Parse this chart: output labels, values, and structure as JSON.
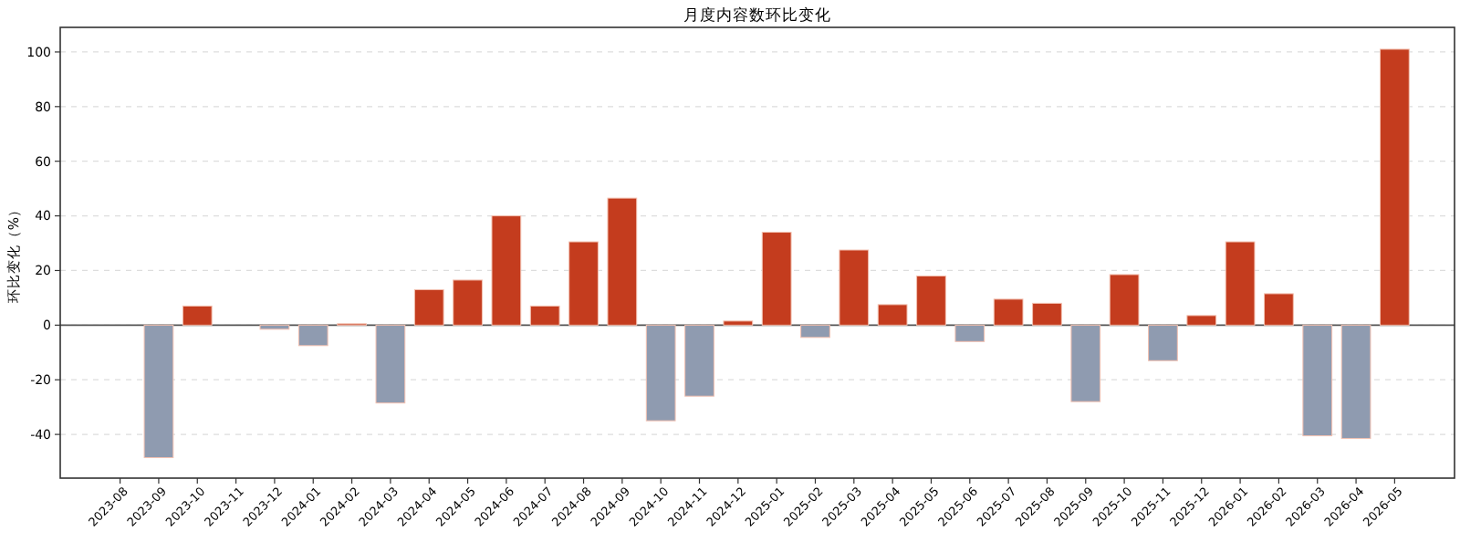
{
  "chart_data": {
    "type": "bar",
    "title": "月度内容数环比变化",
    "ylabel": "环比变化（%）",
    "categories": [
      "2023-08",
      "2023-09",
      "2023-10",
      "2023-11",
      "2023-12",
      "2024-01",
      "2024-02",
      "2024-03",
      "2024-04",
      "2024-05",
      "2024-06",
      "2024-07",
      "2024-08",
      "2024-09",
      "2024-10",
      "2024-11",
      "2024-12",
      "2025-01",
      "2025-02",
      "2025-03",
      "2025-04",
      "2025-05",
      "2025-06",
      "2025-07",
      "2025-08",
      "2025-09",
      "2025-10",
      "2025-11",
      "2025-12",
      "2026-01",
      "2026-02",
      "2026-03",
      "2026-04",
      "2026-05"
    ],
    "values": [
      null,
      -48.5,
      7,
      null,
      -1.5,
      -7.5,
      0.5,
      -28.5,
      13,
      16.5,
      40,
      7,
      30.5,
      46.5,
      -35,
      -26,
      1.5,
      34,
      -4.5,
      27.5,
      7.5,
      18,
      -6,
      9.5,
      8,
      -28,
      18.5,
      -13,
      3.5,
      30.5,
      11.5,
      -40.5,
      -41.5,
      101
    ],
    "colors": [
      null,
      "#8f9bb0",
      "#c43c1e",
      null,
      "#8f9bb0",
      "#8f9bb0",
      "#c43c1e",
      "#8f9bb0",
      "#c43c1e",
      "#c43c1e",
      "#c43c1e",
      "#c43c1e",
      "#c43c1e",
      "#c43c1e",
      "#8f9bb0",
      "#8f9bb0",
      "#c43c1e",
      "#c43c1e",
      "#8f9bb0",
      "#c43c1e",
      "#c43c1e",
      "#c43c1e",
      "#8f9bb0",
      "#c43c1e",
      "#c43c1e",
      "#8f9bb0",
      "#c43c1e",
      "#8f9bb0",
      "#c43c1e",
      "#c43c1e",
      "#c43c1e",
      "#8f9bb0",
      "#8f9bb0",
      "#c43c1e"
    ],
    "ylim": [
      -56,
      109
    ],
    "yticks": [
      -40,
      -20,
      0,
      20,
      40,
      60,
      80,
      100
    ],
    "grid": "y",
    "ref_lines": [
      {
        "axis": "y",
        "value": 0,
        "color": "#555555"
      }
    ]
  }
}
